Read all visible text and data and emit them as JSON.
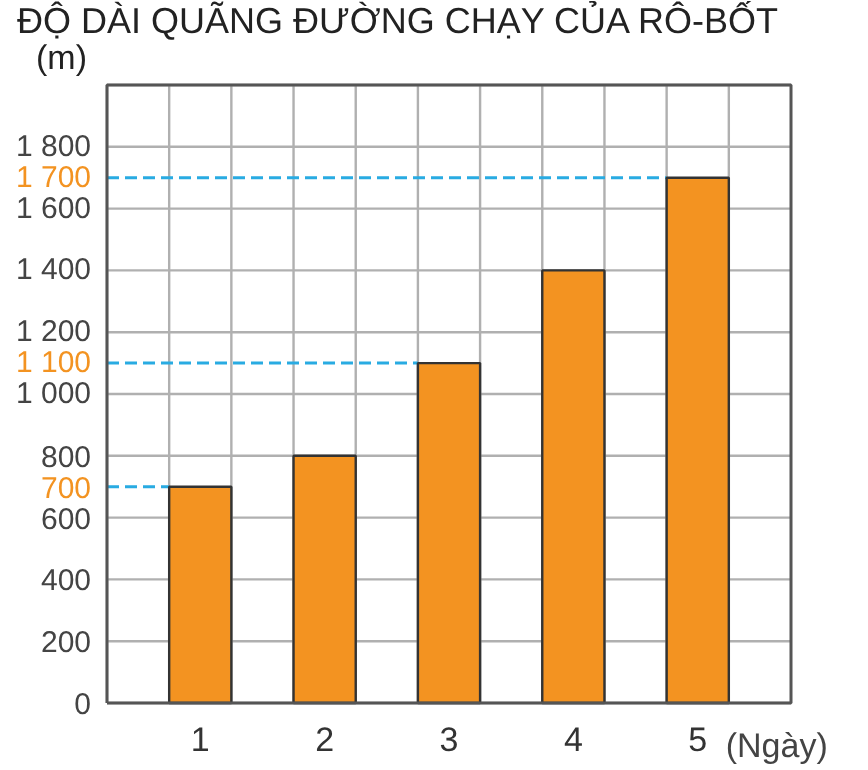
{
  "chart_data": {
    "type": "bar",
    "title": "ĐỘ DÀI QUÃNG ĐƯỜNG CHẠY CỦA RÔ-BỐT",
    "ylabel": "(m)",
    "xlabel": "(Ngày)",
    "categories": [
      "1",
      "2",
      "3",
      "4",
      "5"
    ],
    "values": [
      700,
      800,
      1100,
      1400,
      1700
    ],
    "color": "#f39321",
    "ylim": [
      0,
      2000
    ],
    "yticks": [
      0,
      200,
      400,
      600,
      800,
      {
        "value": 1000,
        "label": "1 000"
      },
      {
        "value": 1200,
        "label": "1 200"
      },
      {
        "value": 1400,
        "label": "1 400"
      },
      {
        "value": 1600,
        "label": "1 600"
      },
      {
        "value": 1800,
        "label": "1 800"
      },
      {
        "value": 2000,
        "label": null
      }
    ],
    "ref_lines": [
      {
        "axis": "y",
        "value": 700,
        "label": "700",
        "color": "#29abe2",
        "line_style": "dashed"
      },
      {
        "axis": "y",
        "value": 1100,
        "label": "1 100",
        "color": "#29abe2",
        "line_style": "dashed"
      },
      {
        "axis": "y",
        "value": 1700,
        "label": "1 700",
        "color": "#29abe2",
        "line_style": "dashed"
      }
    ],
    "grid": true
  }
}
